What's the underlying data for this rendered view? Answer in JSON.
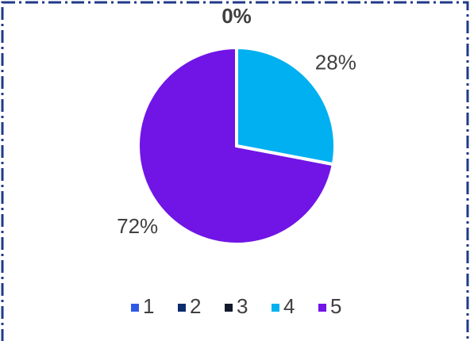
{
  "chart_data": {
    "type": "pie",
    "categories": [
      "1",
      "2",
      "3",
      "4",
      "5"
    ],
    "values": [
      0,
      0,
      0,
      28,
      72
    ],
    "value_labels": [
      "0%",
      null,
      null,
      "28%",
      "72%"
    ],
    "colors": [
      "#2e5ae6",
      "#0b2c6e",
      "#121a2b",
      "#00b0f0",
      "#7015e6"
    ],
    "legend": "bottom"
  }
}
